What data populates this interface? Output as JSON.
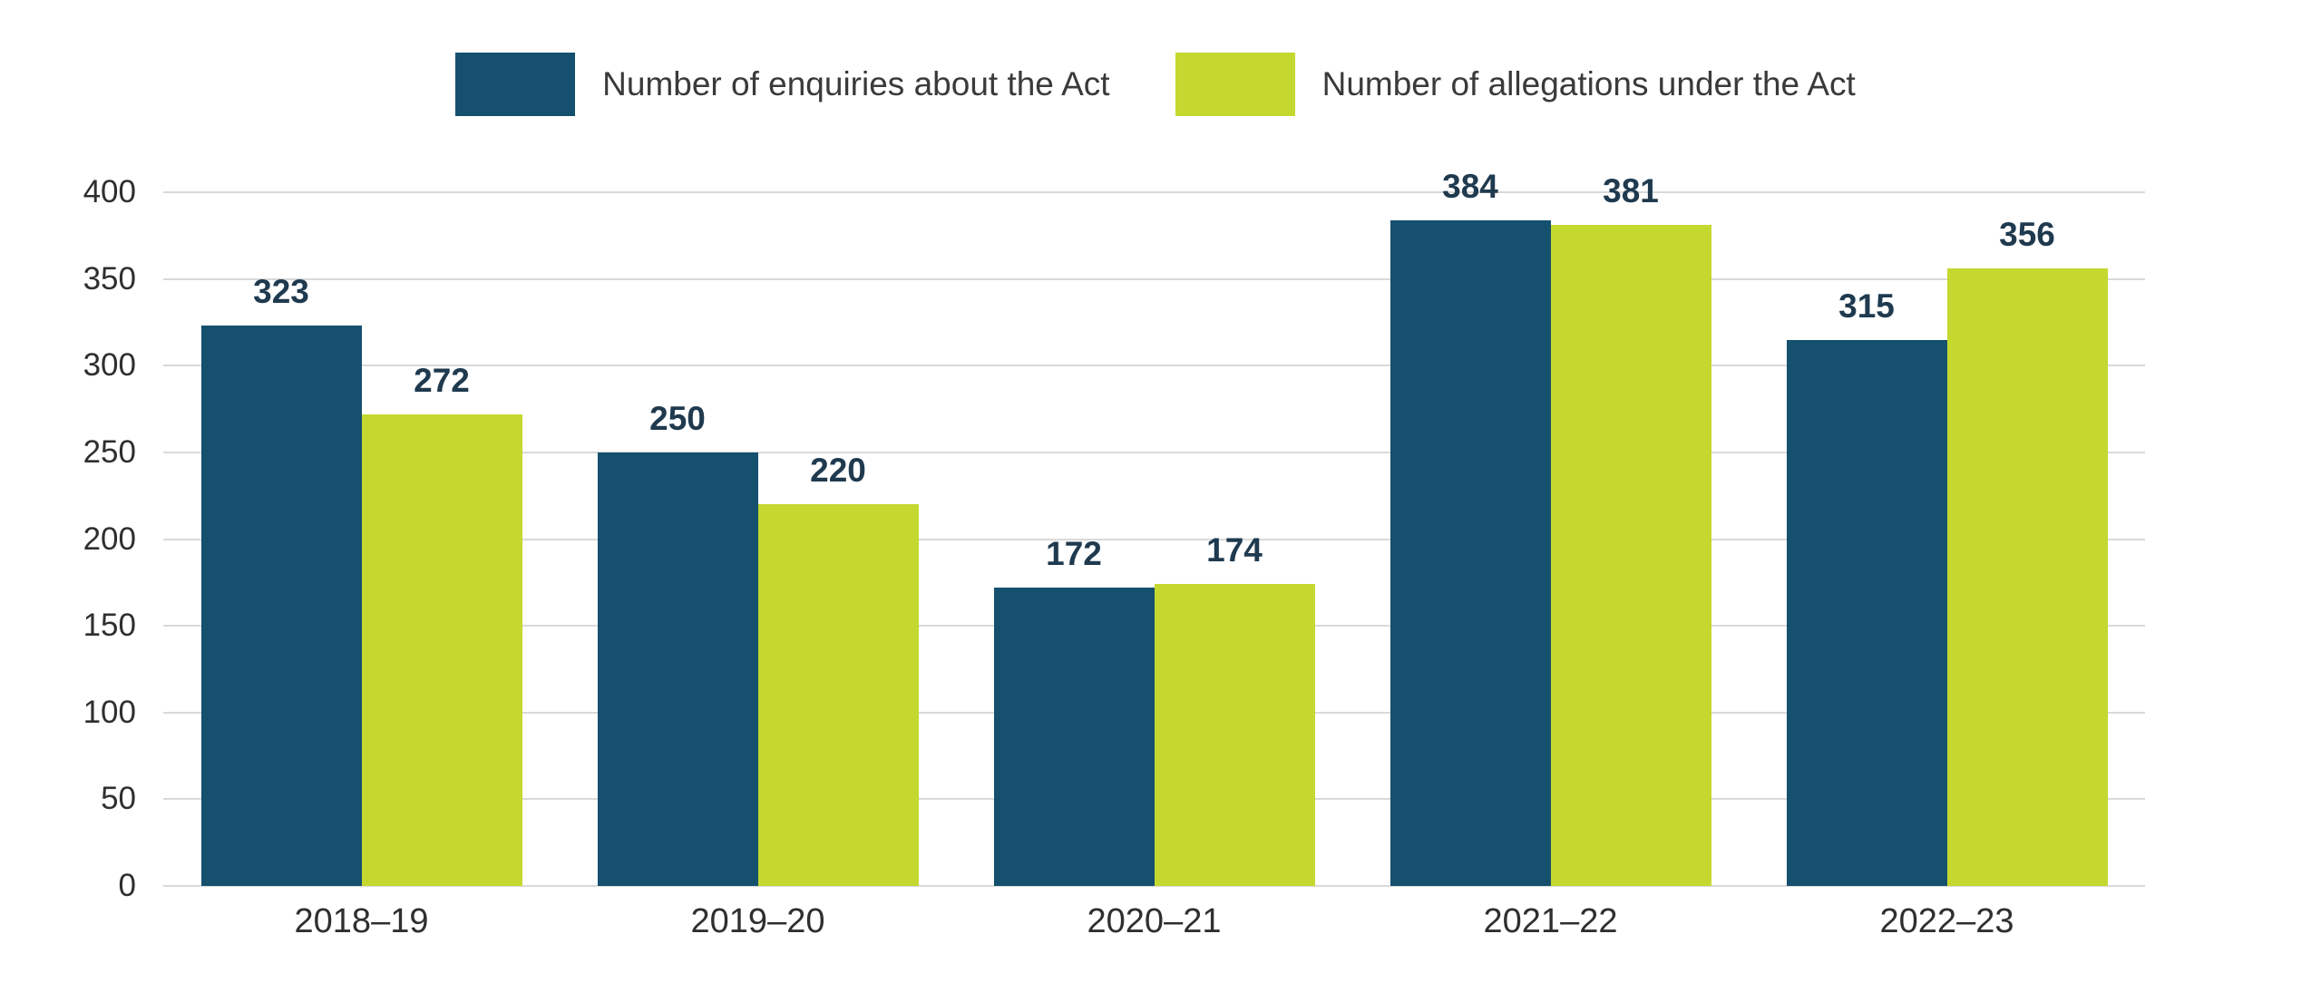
{
  "chart_data": {
    "type": "bar",
    "title": "",
    "xlabel": "",
    "ylabel": "",
    "categories": [
      "2018–19",
      "2019–20",
      "2020–21",
      "2021–22",
      "2022–23"
    ],
    "series": [
      {
        "name": "Number of enquiries about the Act",
        "color": "#15506E",
        "values": [
          323,
          250,
          172,
          384,
          315
        ]
      },
      {
        "name": "Number of allegations under the Act",
        "color": "#C4D82F",
        "values": [
          272,
          220,
          174,
          381,
          356
        ]
      }
    ],
    "ylim": [
      0,
      400
    ],
    "ytick_step": 50,
    "yticks": [
      0,
      50,
      100,
      150,
      200,
      250,
      300,
      350,
      400
    ],
    "grid": true,
    "legend_position": "top-center",
    "data_labels": true
  },
  "colors": {
    "background": "#FFFFFF",
    "grid": "#D9D9D9",
    "data_label": "#1F3A4F",
    "axis_label": "#2F2F2F"
  }
}
